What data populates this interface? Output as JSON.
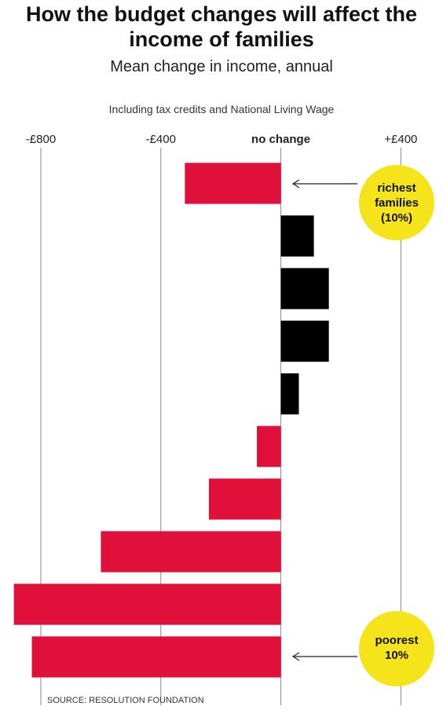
{
  "chart_data": {
    "type": "hbar",
    "title": "How the budget changes will affect the income of families",
    "subtitle": "Mean change in income, annual",
    "note": "Including tax credits and National Living Wage",
    "source": "SOURCE: RESOLUTION FOUNDATION",
    "categories": [
      null,
      null,
      null,
      null,
      null,
      null,
      null,
      null,
      null,
      null
    ],
    "values": [
      -320,
      110,
      160,
      160,
      60,
      -80,
      -240,
      -600,
      -890,
      -830
    ],
    "colors": [
      "#e0103a",
      "#000000",
      "#000000",
      "#000000",
      "#000000",
      "#e0103a",
      "#e0103a",
      "#e0103a",
      "#e0103a",
      "#e0103a"
    ],
    "xlim": [
      -910,
      530
    ],
    "xticks": [
      {
        "value": -800,
        "label": "-£800"
      },
      {
        "value": -400,
        "label": "-£400"
      },
      {
        "value": 0,
        "label": "no change"
      },
      {
        "value": 400,
        "label": "+£400"
      }
    ],
    "grid": true,
    "annotations": [
      {
        "text": "richest families (10%)",
        "bar": 0
      },
      {
        "text": "poorest 10%",
        "bar": 9
      }
    ]
  }
}
